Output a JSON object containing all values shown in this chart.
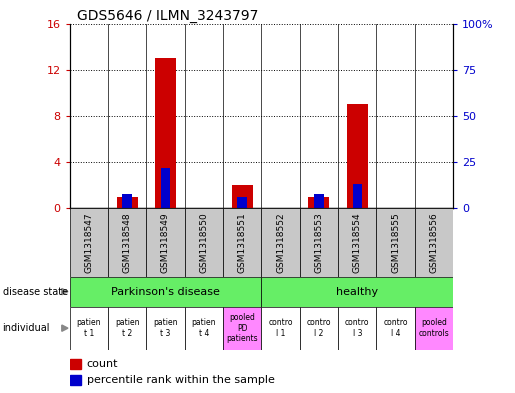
{
  "title": "GDS5646 / ILMN_3243797",
  "samples": [
    "GSM1318547",
    "GSM1318548",
    "GSM1318549",
    "GSM1318550",
    "GSM1318551",
    "GSM1318552",
    "GSM1318553",
    "GSM1318554",
    "GSM1318555",
    "GSM1318556"
  ],
  "count_values": [
    0,
    1,
    13,
    0,
    2,
    0,
    1,
    9,
    0,
    0
  ],
  "percentile_values": [
    0,
    8,
    22,
    0,
    6,
    0,
    8,
    13,
    0,
    0
  ],
  "ylim_left": [
    0,
    16
  ],
  "ylim_right": [
    0,
    100
  ],
  "yticks_left": [
    0,
    4,
    8,
    12,
    16
  ],
  "yticks_right": [
    0,
    25,
    50,
    75,
    100
  ],
  "yticklabels_left": [
    "0",
    "4",
    "8",
    "12",
    "16"
  ],
  "yticklabels_right": [
    "0",
    "25",
    "50",
    "75",
    "100%"
  ],
  "disease_state_color": "#66ee66",
  "individual_colors": [
    "#ffffff",
    "#ffffff",
    "#ffffff",
    "#ffffff",
    "#ff88ff",
    "#ffffff",
    "#ffffff",
    "#ffffff",
    "#ffffff",
    "#ff88ff"
  ],
  "bar_color_red": "#cc0000",
  "bar_color_blue": "#0000cc",
  "tick_area_bg": "#c8c8c8",
  "left_label_color": "#cc0000",
  "right_label_color": "#0000cc",
  "ind_labels": [
    "patien\nt 1",
    "patien\nt 2",
    "patien\nt 3",
    "patien\nt 4",
    "pooled\nPD\npatients",
    "contro\nl 1",
    "contro\nl 2",
    "contro\nl 3",
    "contro\nl 4",
    "pooled\ncontrols"
  ]
}
